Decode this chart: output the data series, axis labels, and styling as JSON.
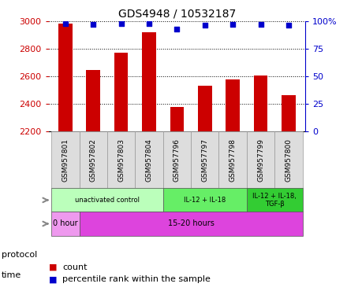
{
  "title": "GDS4948 / 10532187",
  "samples": [
    "GSM957801",
    "GSM957802",
    "GSM957803",
    "GSM957804",
    "GSM957796",
    "GSM957797",
    "GSM957798",
    "GSM957799",
    "GSM957800"
  ],
  "counts": [
    2980,
    2645,
    2770,
    2920,
    2380,
    2530,
    2580,
    2605,
    2465
  ],
  "percentile_ranks": [
    98,
    97,
    98,
    98,
    93,
    96,
    97,
    97,
    96
  ],
  "ylim": [
    2200,
    3000
  ],
  "yticks": [
    2200,
    2400,
    2600,
    2800,
    3000
  ],
  "right_yticks": [
    0,
    25,
    50,
    75,
    100
  ],
  "right_ylim": [
    0,
    100
  ],
  "bar_color": "#cc0000",
  "dot_color": "#0000cc",
  "tick_label_color": "#cc0000",
  "right_tick_color": "#0000cc",
  "protocol_groups": [
    {
      "label": "unactivated control",
      "start": 0,
      "end": 3,
      "color": "#bbffbb"
    },
    {
      "label": "IL-12 + IL-18",
      "start": 4,
      "end": 6,
      "color": "#66ee66"
    },
    {
      "label": "IL-12 + IL-18,\nTGF-β",
      "start": 7,
      "end": 8,
      "color": "#33cc33"
    }
  ],
  "time_groups": [
    {
      "label": "0 hour",
      "start": 0,
      "end": 0,
      "color": "#ee99ee"
    },
    {
      "label": "15-20 hours",
      "start": 1,
      "end": 8,
      "color": "#dd44dd"
    }
  ],
  "legend_count_color": "#cc0000",
  "legend_pct_color": "#0000cc"
}
